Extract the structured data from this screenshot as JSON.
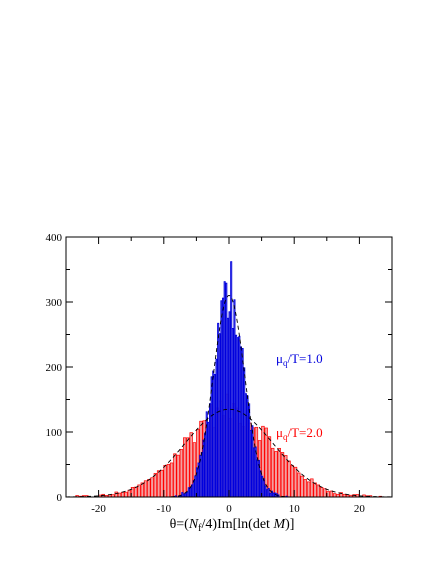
{
  "chart_data": {
    "type": "bar",
    "xlabel": "θ=(Nf/4)Im[ln(det M)]",
    "xlabel_parts": {
      "prefix": "θ=(",
      "N": "N",
      "sub": "f",
      "mid": "/4)Im[ln(det ",
      "M": "M",
      "suffix": ")]"
    },
    "xlim": [
      -25,
      25
    ],
    "ylim": [
      0,
      400
    ],
    "x_ticks": [
      -20,
      -10,
      0,
      10,
      20
    ],
    "y_ticks": [
      0,
      100,
      200,
      300,
      400
    ],
    "x_tick_labels": [
      "-20",
      "-10",
      "0",
      "10",
      "20"
    ],
    "y_tick_labels": [
      "0",
      "100",
      "200",
      "300",
      "400"
    ],
    "series": [
      {
        "name": "μq/T=2.0",
        "label_parts": {
          "mu": "μ",
          "sub": "q",
          "rest": "/T=2.0"
        },
        "color": "#ff0000",
        "fill": "#f4a0a0",
        "bin_width": 0.5,
        "fit": {
          "amplitude": 135,
          "center": 0,
          "sigma": 6.8
        }
      },
      {
        "name": "μq/T=1.0",
        "label_parts": {
          "mu": "μ",
          "sub": "q",
          "rest": "/T=1.0"
        },
        "color": "#0000dd",
        "fill": "#8a8ae6",
        "bin_width": 0.25,
        "fit": {
          "amplitude": 310,
          "center": 0,
          "sigma": 2.4
        },
        "peak": {
          "x": 0.3,
          "y": 362
        }
      }
    ]
  }
}
